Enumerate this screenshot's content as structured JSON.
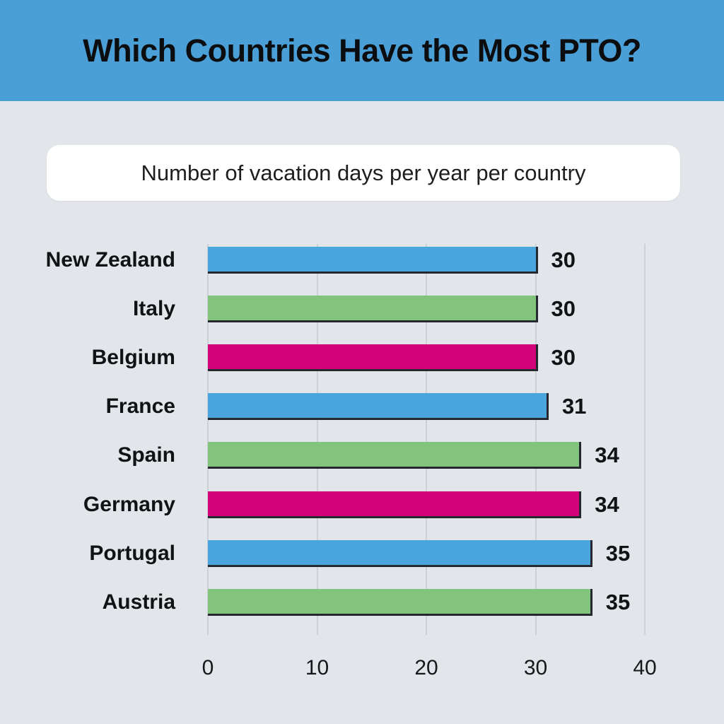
{
  "header": {
    "title": "Which Countries Have the Most PTO?",
    "background_color": "#4b9fd7"
  },
  "subtitle": {
    "text": "Number of vacation days per year per country"
  },
  "chart_data": {
    "type": "bar",
    "orientation": "horizontal",
    "title": "Which Countries Have the Most PTO?",
    "subtitle": "Number of vacation days per year per country",
    "categories": [
      "New Zealand",
      "Italy",
      "Belgium",
      "France",
      "Spain",
      "Germany",
      "Portugal",
      "Austria"
    ],
    "values": [
      30,
      30,
      30,
      31,
      34,
      34,
      35,
      35
    ],
    "value_labels": [
      "30",
      "30",
      "30",
      "31",
      "34",
      "34",
      "35",
      "35"
    ],
    "bar_colors": [
      "#4aa5dd",
      "#82c47e",
      "#d20079",
      "#4aa5dd",
      "#82c47e",
      "#d20079",
      "#4aa5dd",
      "#82c47e"
    ],
    "palette": {
      "blue": "#4aa5dd",
      "green": "#82c47e",
      "magenta": "#d20079",
      "bar_outline": "#25292f",
      "gridline": "#ccd1d7",
      "background": "#e2e5e9"
    },
    "xlabel": "",
    "ylabel": "",
    "xlim": [
      0,
      40
    ],
    "x_ticks": [
      "0",
      "10",
      "20",
      "30",
      "40"
    ],
    "x_tick_values": [
      0,
      10,
      20,
      30,
      40
    ],
    "grid": true,
    "legend": "none"
  }
}
